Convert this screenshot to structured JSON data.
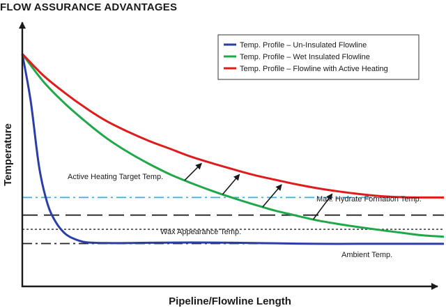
{
  "header": {
    "title": "FLOW ASSURANCE ADVANTAGES"
  },
  "chart_data": {
    "type": "line",
    "title": "FLOW ASSURANCE ADVANTAGES",
    "xlabel": "Pipeline/Flowline Length",
    "ylabel": "Temperature",
    "xlim": [
      0,
      100
    ],
    "ylim": [
      0,
      100
    ],
    "grid": false,
    "legend_position": "top-right",
    "series": [
      {
        "name": "Temp. Profile – Un-Insulated Flowline",
        "color": "#2b3ea8",
        "x": [
          0,
          2,
          4,
          6,
          8,
          10,
          12,
          15,
          20,
          25,
          30,
          40,
          50,
          60,
          70,
          80,
          90,
          100
        ],
        "y": [
          88,
          70,
          45,
          31,
          24,
          20,
          18,
          16.5,
          16.2,
          16.2,
          16.3,
          16.4,
          16.3,
          16.1,
          15.9,
          15.9,
          15.9,
          15.9
        ]
      },
      {
        "name": "Temp. Profile – Wet Insulated Flowline",
        "color": "#1fa84a",
        "x": [
          0,
          5,
          10,
          15,
          20,
          25,
          30,
          35,
          40,
          45,
          50,
          55,
          60,
          65,
          70,
          75,
          80,
          85,
          90,
          95,
          100
        ],
        "y": [
          88,
          77.5,
          69.3,
          62.3,
          56,
          50.8,
          46.3,
          42.3,
          39,
          36,
          33.3,
          30.8,
          28.5,
          26.6,
          24.8,
          23.4,
          22.2,
          21.1,
          20.1,
          19.1,
          18.6
        ]
      },
      {
        "name": "Temp. Profile – Flowline with Active Heating",
        "color": "#e01b1b",
        "x": [
          0,
          5,
          10,
          15,
          20,
          25,
          30,
          35,
          40,
          45,
          50,
          55,
          60,
          65,
          70,
          75,
          80,
          85,
          90,
          95,
          100
        ],
        "y": [
          88,
          79.8,
          73.3,
          67.5,
          62.5,
          58.5,
          55,
          52,
          49,
          46.5,
          44.2,
          42,
          40.2,
          38.5,
          37,
          35.8,
          34.8,
          34,
          33.6,
          33.5,
          33.5
        ]
      }
    ],
    "reference_lines": [
      {
        "label": "Active Heating Target Temp.",
        "y": 33.5,
        "style": "dash-dot",
        "color": "#3aaee0"
      },
      {
        "label": "Max. Hydrate Formation Temp.",
        "y": 26.8,
        "style": "long-dash",
        "color": "#222222"
      },
      {
        "label": "Wax Appearance Temp.",
        "y": 21.4,
        "style": "dotted",
        "color": "#222222"
      },
      {
        "label": "Ambient Temp.",
        "y": 16,
        "style": "dash-dot",
        "color": "#222222"
      }
    ],
    "arrows": [
      {
        "x_from": 38.5,
        "x_to": 42.5
      },
      {
        "x_from": 47.5,
        "x_to": 51.5
      },
      {
        "x_from": 57,
        "x_to": 61.5
      },
      {
        "x_from": 69,
        "x_to": 73.5
      }
    ]
  }
}
